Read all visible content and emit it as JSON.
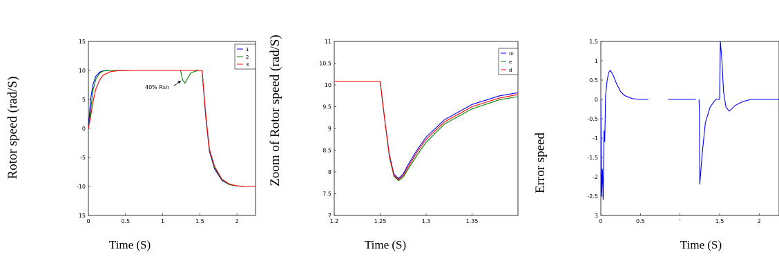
{
  "chart_data": [
    {
      "type": "line",
      "ylabel": "Rotor speed (rad/S)",
      "xlabel": "Time (S)",
      "xlim": [
        0,
        2.25
      ],
      "ylim": [
        -15,
        15
      ],
      "x_ticks": [
        "0",
        "0.5",
        "1",
        "1.5",
        "2"
      ],
      "x_tick_values": [
        0,
        0.5,
        1,
        1.5,
        2
      ],
      "y_ticks": [
        "15",
        "10",
        "5",
        "0",
        "-5",
        "-10",
        "15"
      ],
      "y_tick_values": [
        15,
        10,
        5,
        0,
        -5,
        -10,
        -15
      ],
      "legend": [
        "1",
        "2",
        "3"
      ],
      "legend_position": "top-right",
      "annotation": "40% Rsn",
      "series": [
        {
          "color": "#0000ff",
          "x": [
            0,
            0.03,
            0.06,
            0.1,
            0.15,
            0.2,
            0.3,
            0.4,
            0.6,
            1.0,
            1.25,
            1.3,
            1.4,
            1.5,
            1.53,
            1.58,
            1.63,
            1.7,
            1.8,
            1.9,
            2.0,
            2.1,
            2.25
          ],
          "y": [
            0,
            5,
            7.5,
            9,
            9.7,
            9.95,
            10,
            10,
            10,
            10,
            10,
            10,
            10,
            10,
            10,
            2,
            -4,
            -7,
            -9,
            -9.7,
            -9.9,
            -10,
            -10
          ]
        },
        {
          "color": "#008000",
          "x": [
            0,
            0.03,
            0.06,
            0.1,
            0.15,
            0.2,
            0.3,
            0.4,
            0.6,
            1.0,
            1.24,
            1.27,
            1.3,
            1.33,
            1.38,
            1.45,
            1.5,
            1.53,
            1.58,
            1.63,
            1.7,
            1.8,
            1.9,
            2.0,
            2.1,
            2.25
          ],
          "y": [
            0,
            3,
            6.5,
            8.5,
            9.5,
            9.9,
            10,
            10,
            10,
            10,
            10,
            8.3,
            7.8,
            8.5,
            9.6,
            9.9,
            10,
            10,
            2.3,
            -3.8,
            -6.8,
            -8.9,
            -9.7,
            -9.9,
            -10,
            -10
          ]
        },
        {
          "color": "#ff0000",
          "x": [
            0,
            0.03,
            0.06,
            0.1,
            0.15,
            0.2,
            0.3,
            0.4,
            0.6,
            1.0,
            1.25,
            1.3,
            1.4,
            1.5,
            1.53,
            1.58,
            1.63,
            1.7,
            1.8,
            1.9,
            2.0,
            2.1,
            2.25
          ],
          "y": [
            0,
            2,
            4.5,
            6.8,
            8.3,
            9.2,
            9.8,
            9.95,
            10,
            10,
            10,
            10,
            10,
            10,
            10,
            2.5,
            -3.6,
            -6.6,
            -8.8,
            -9.6,
            -9.9,
            -10,
            -10
          ]
        }
      ]
    },
    {
      "type": "line",
      "ylabel": "Zoom of Rotor speed (rad/S)",
      "xlabel": "Time (S)",
      "xlim": [
        1.2,
        1.4
      ],
      "ylim": [
        7,
        11
      ],
      "x_ticks": [
        "1.2",
        "1.25",
        "1.3",
        "1.35"
      ],
      "x_tick_values": [
        1.2,
        1.25,
        1.3,
        1.35
      ],
      "y_ticks": [
        "11",
        "10.5",
        "10",
        "9.5",
        "9",
        "8.5",
        "8",
        "7.5",
        "7"
      ],
      "y_tick_values": [
        11,
        10.5,
        10,
        9.5,
        9,
        8.5,
        8,
        7.5,
        7
      ],
      "legend": [
        "m",
        "e",
        "d"
      ],
      "legend_position": "top-right",
      "series": [
        {
          "color": "#0000ff",
          "x": [
            1.2,
            1.25,
            1.255,
            1.26,
            1.265,
            1.27,
            1.275,
            1.28,
            1.29,
            1.3,
            1.32,
            1.35,
            1.38,
            1.4
          ],
          "y": [
            10.08,
            10.08,
            9.2,
            8.4,
            7.95,
            7.85,
            7.95,
            8.15,
            8.5,
            8.8,
            9.2,
            9.55,
            9.75,
            9.82
          ]
        },
        {
          "color": "#008000",
          "x": [
            1.2,
            1.25,
            1.255,
            1.26,
            1.265,
            1.27,
            1.275,
            1.28,
            1.29,
            1.3,
            1.32,
            1.35,
            1.38,
            1.4
          ],
          "y": [
            10.08,
            10.08,
            9.2,
            8.35,
            7.9,
            7.8,
            7.88,
            8.05,
            8.38,
            8.68,
            9.1,
            9.45,
            9.66,
            9.73
          ]
        },
        {
          "color": "#ff0000",
          "x": [
            1.2,
            1.25,
            1.255,
            1.26,
            1.265,
            1.27,
            1.275,
            1.28,
            1.29,
            1.3,
            1.32,
            1.35,
            1.38,
            1.4
          ],
          "y": [
            10.08,
            10.08,
            9.2,
            8.38,
            7.92,
            7.82,
            7.92,
            8.1,
            8.45,
            8.75,
            9.15,
            9.5,
            9.7,
            9.78
          ]
        }
      ]
    },
    {
      "type": "line",
      "ylabel": "Error speed",
      "xlabel": "Time (S)",
      "xlim": [
        0,
        2.25
      ],
      "ylim": [
        -3,
        1.5
      ],
      "x_ticks": [
        "0",
        "0.5",
        "'",
        "1.5",
        "2"
      ],
      "x_tick_values": [
        0,
        0.5,
        1,
        1.5,
        2
      ],
      "y_ticks": [
        "1.5",
        "1",
        "0.5",
        "0",
        "-0.5",
        "-1",
        "-1.5",
        "-2",
        "-2.5",
        "3"
      ],
      "y_tick_values": [
        1.5,
        1,
        0.5,
        0,
        -0.5,
        -1,
        -1.5,
        -2,
        -2.5,
        -3
      ],
      "series": [
        {
          "color": "#0000ff",
          "x": [
            0,
            0.01,
            0.02,
            0.03,
            0.04,
            0.05,
            0.06,
            0.08,
            0.1,
            0.12,
            0.15,
            0.2,
            0.25,
            0.3,
            0.4,
            0.5,
            0.6
          ],
          "y": [
            0,
            -2.5,
            -1.8,
            -2.6,
            -0.8,
            -1.1,
            0.1,
            0.5,
            0.7,
            0.75,
            0.65,
            0.4,
            0.2,
            0.1,
            0.02,
            0,
            0
          ]
        },
        {
          "color": "#0000ff",
          "x": [
            0.85,
            0.88,
            0.93,
            0.96,
            1.0,
            1.03,
            1.08,
            1.12,
            1.16,
            1.2
          ],
          "y": [
            0,
            0,
            0,
            0,
            0,
            0,
            0,
            0,
            0,
            0
          ]
        },
        {
          "color": "#0000ff",
          "x": [
            1.24,
            1.245,
            1.25,
            1.28,
            1.32,
            1.38,
            1.45,
            1.5,
            1.51,
            1.53,
            1.55,
            1.58,
            1.62,
            1.65,
            1.7,
            1.8,
            1.9,
            2.0,
            2.25
          ],
          "y": [
            0,
            -0.3,
            -2.2,
            -1.4,
            -0.6,
            -0.2,
            0,
            0,
            1.5,
            1.0,
            0.2,
            -0.2,
            -0.3,
            -0.25,
            -0.15,
            -0.05,
            0,
            0,
            0
          ]
        }
      ]
    }
  ]
}
